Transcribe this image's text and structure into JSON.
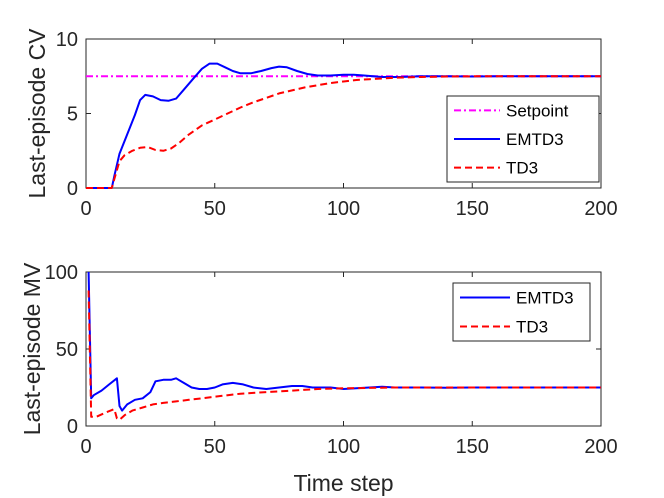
{
  "chart_data": [
    {
      "type": "line",
      "title": "",
      "xlabel": "",
      "ylabel": "Last-episode CV",
      "xlim": [
        0,
        200
      ],
      "ylim": [
        0,
        10
      ],
      "xticks": [
        "0",
        "50",
        "100",
        "150",
        "200"
      ],
      "yticks": [
        "0",
        "5",
        "10"
      ],
      "legend_position": "right",
      "series": [
        {
          "name": "Setpoint",
          "color": "#ff00ff",
          "style": "dashdot",
          "points": [
            [
              0,
              7.5
            ],
            [
              200,
              7.5
            ]
          ]
        },
        {
          "name": "EMTD3",
          "color": "#0000ff",
          "style": "solid",
          "points": [
            [
              0,
              0
            ],
            [
              10,
              0
            ],
            [
              11,
              0.8
            ],
            [
              13,
              2.3
            ],
            [
              16,
              3.6
            ],
            [
              19,
              4.9
            ],
            [
              21,
              5.9
            ],
            [
              23,
              6.25
            ],
            [
              26,
              6.15
            ],
            [
              29,
              5.9
            ],
            [
              32,
              5.85
            ],
            [
              35,
              6.0
            ],
            [
              38,
              6.6
            ],
            [
              42,
              7.4
            ],
            [
              45,
              8.0
            ],
            [
              48,
              8.35
            ],
            [
              51,
              8.35
            ],
            [
              54,
              8.1
            ],
            [
              57,
              7.85
            ],
            [
              60,
              7.7
            ],
            [
              64,
              7.7
            ],
            [
              68,
              7.85
            ],
            [
              72,
              8.05
            ],
            [
              75,
              8.15
            ],
            [
              78,
              8.1
            ],
            [
              82,
              7.85
            ],
            [
              86,
              7.65
            ],
            [
              90,
              7.55
            ],
            [
              95,
              7.55
            ],
            [
              100,
              7.6
            ],
            [
              104,
              7.6
            ],
            [
              108,
              7.55
            ],
            [
              115,
              7.45
            ],
            [
              122,
              7.45
            ],
            [
              130,
              7.5
            ],
            [
              140,
              7.5
            ],
            [
              150,
              7.48
            ],
            [
              160,
              7.5
            ],
            [
              200,
              7.5
            ]
          ]
        },
        {
          "name": "TD3",
          "color": "#ff0000",
          "style": "dashed",
          "points": [
            [
              0,
              0
            ],
            [
              10,
              0
            ],
            [
              11,
              0.6
            ],
            [
              13,
              1.8
            ],
            [
              15,
              2.2
            ],
            [
              18,
              2.5
            ],
            [
              21,
              2.7
            ],
            [
              24,
              2.75
            ],
            [
              27,
              2.55
            ],
            [
              30,
              2.5
            ],
            [
              33,
              2.65
            ],
            [
              36,
              3.0
            ],
            [
              40,
              3.6
            ],
            [
              45,
              4.2
            ],
            [
              50,
              4.6
            ],
            [
              55,
              5.0
            ],
            [
              60,
              5.4
            ],
            [
              65,
              5.75
            ],
            [
              70,
              6.05
            ],
            [
              75,
              6.35
            ],
            [
              80,
              6.55
            ],
            [
              85,
              6.75
            ],
            [
              90,
              6.9
            ],
            [
              95,
              7.05
            ],
            [
              100,
              7.15
            ],
            [
              105,
              7.25
            ],
            [
              110,
              7.3
            ],
            [
              115,
              7.35
            ],
            [
              120,
              7.4
            ],
            [
              130,
              7.45
            ],
            [
              140,
              7.48
            ],
            [
              150,
              7.5
            ],
            [
              200,
              7.5
            ]
          ]
        }
      ]
    },
    {
      "type": "line",
      "title": "",
      "xlabel": "Time step",
      "ylabel": "Last-episode MV",
      "xlim": [
        0,
        200
      ],
      "ylim": [
        0,
        100
      ],
      "xticks": [
        "0",
        "50",
        "100",
        "150",
        "200"
      ],
      "yticks": [
        "0",
        "50",
        "100"
      ],
      "legend_position": "top-right",
      "series": [
        {
          "name": "EMTD3",
          "color": "#0000ff",
          "style": "solid",
          "points": [
            [
              1,
              100
            ],
            [
              2,
              18
            ],
            [
              3,
              20
            ],
            [
              6,
              23
            ],
            [
              9,
              27
            ],
            [
              12,
              31
            ],
            [
              13,
              13
            ],
            [
              14,
              10
            ],
            [
              16,
              14
            ],
            [
              19,
              17
            ],
            [
              22,
              18
            ],
            [
              25,
              22
            ],
            [
              27,
              29
            ],
            [
              30,
              30
            ],
            [
              33,
              30
            ],
            [
              35,
              31
            ],
            [
              38,
              28
            ],
            [
              41,
              25
            ],
            [
              44,
              24
            ],
            [
              47,
              24
            ],
            [
              50,
              25
            ],
            [
              53,
              27
            ],
            [
              57,
              28
            ],
            [
              61,
              27
            ],
            [
              65,
              25
            ],
            [
              70,
              24
            ],
            [
              75,
              25
            ],
            [
              80,
              26
            ],
            [
              84,
              26
            ],
            [
              88,
              25
            ],
            [
              95,
              25
            ],
            [
              100,
              24
            ],
            [
              110,
              25
            ],
            [
              115,
              25.5
            ],
            [
              120,
              25
            ],
            [
              130,
              25
            ],
            [
              140,
              24.8
            ],
            [
              150,
              25
            ],
            [
              200,
              25
            ]
          ]
        },
        {
          "name": "TD3",
          "color": "#ff0000",
          "style": "dashed",
          "points": [
            [
              1,
              88
            ],
            [
              2,
              6
            ],
            [
              4,
              6
            ],
            [
              8,
              9
            ],
            [
              11,
              11
            ],
            [
              12,
              5
            ],
            [
              13,
              4
            ],
            [
              15,
              7
            ],
            [
              18,
              10
            ],
            [
              22,
              12
            ],
            [
              26,
              14
            ],
            [
              30,
              15
            ],
            [
              35,
              16
            ],
            [
              40,
              17
            ],
            [
              45,
              18
            ],
            [
              50,
              19
            ],
            [
              55,
              20
            ],
            [
              60,
              21
            ],
            [
              70,
              22
            ],
            [
              80,
              23
            ],
            [
              90,
              24
            ],
            [
              100,
              24.5
            ],
            [
              120,
              25
            ],
            [
              150,
              25
            ],
            [
              200,
              25
            ]
          ]
        }
      ]
    }
  ]
}
